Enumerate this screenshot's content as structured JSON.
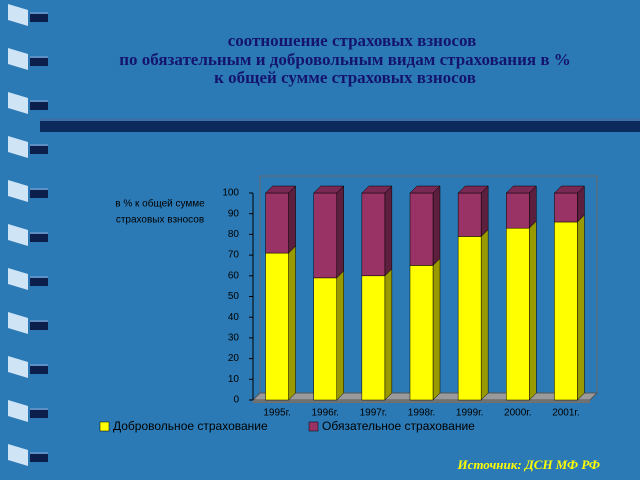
{
  "chart_data": {
    "type": "bar3d_stacked",
    "title": [
      "соотношение  страховых  взносов",
      "по обязательным и добровольным видам страхования в %",
      "к общей сумме страховых взносов"
    ],
    "y_label": [
      "в % к общей сумме",
      "страховых взносов"
    ],
    "categories": [
      "1995г.",
      "1996г.",
      "1997г.",
      "1998г.",
      "1999г.",
      "2000г.",
      "2001г."
    ],
    "series": [
      {
        "name": "Добровольное страхование",
        "color": "#ffff00",
        "values": [
          71,
          59,
          60,
          65,
          79,
          83,
          86
        ]
      },
      {
        "name": "Обязательное страхование",
        "color": "#993366",
        "values": [
          29,
          41,
          40,
          35,
          21,
          17,
          14
        ]
      }
    ],
    "ylim": [
      0,
      100
    ],
    "yticks": [
      0,
      10,
      20,
      30,
      40,
      50,
      60,
      70,
      80,
      90,
      100
    ],
    "legend": "bottom",
    "source": "Источник:  ДСН  МФ  РФ"
  }
}
